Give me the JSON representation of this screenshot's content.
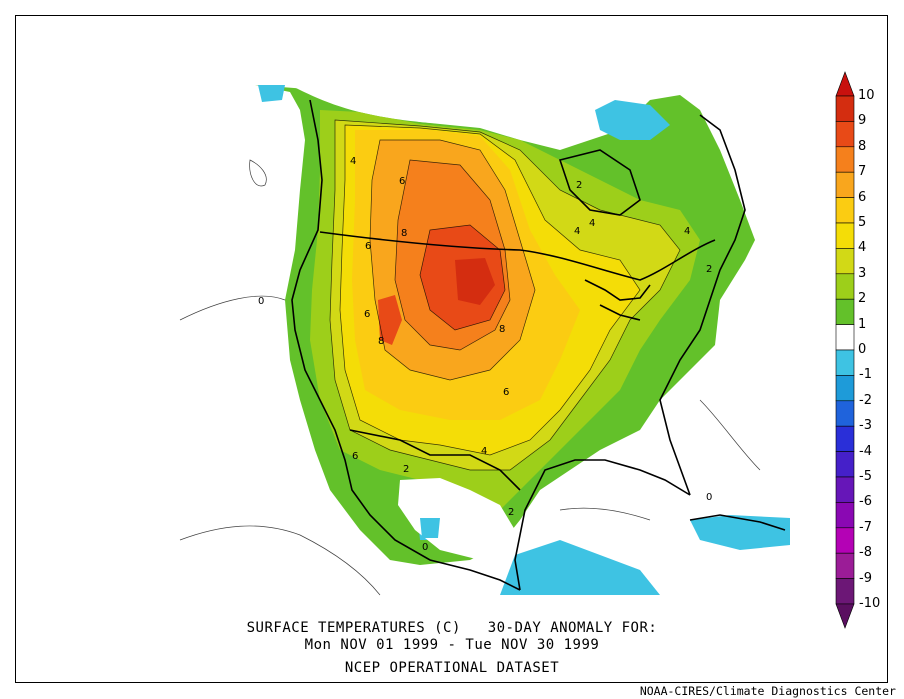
{
  "caption": {
    "line1": "SURFACE TEMPERATURES (C)   30-DAY ANOMALY FOR:",
    "line2": "Mon NOV 01 1999 - Tue NOV 30 1999",
    "line3": "NCEP OPERATIONAL DATASET"
  },
  "credit": "NOAA-CIRES/Climate Diagnostics Center",
  "colorbar": {
    "levels": [
      "10",
      "9",
      "8",
      "7",
      "6",
      "5",
      "4",
      "3",
      "2",
      "1",
      "0",
      "-1",
      "-2",
      "-3",
      "-4",
      "-5",
      "-6",
      "-7",
      "-8",
      "-9",
      "-10"
    ],
    "colors": [
      "#d42d10",
      "#e84a17",
      "#f5801c",
      "#f9a61d",
      "#fbcc12",
      "#f4dd07",
      "#d2d916",
      "#9dcf1a",
      "#63c12a",
      "#ffffff",
      "#3ec3e3",
      "#1e9bd9",
      "#1f63dc",
      "#2a2fd8",
      "#4520c9",
      "#6616b8",
      "#8a08b3",
      "#b402b5",
      "#9b1c97",
      "#6c1776"
    ],
    "top_color": "#c8110e",
    "bottom_color": "#5a0f60"
  },
  "contour_labels": [
    "4",
    "6",
    "2",
    "4",
    "4",
    "4",
    "6",
    "8",
    "6",
    "8",
    "8",
    "6",
    "4",
    "6",
    "2",
    "2",
    "0",
    "0",
    "0",
    "2"
  ]
}
